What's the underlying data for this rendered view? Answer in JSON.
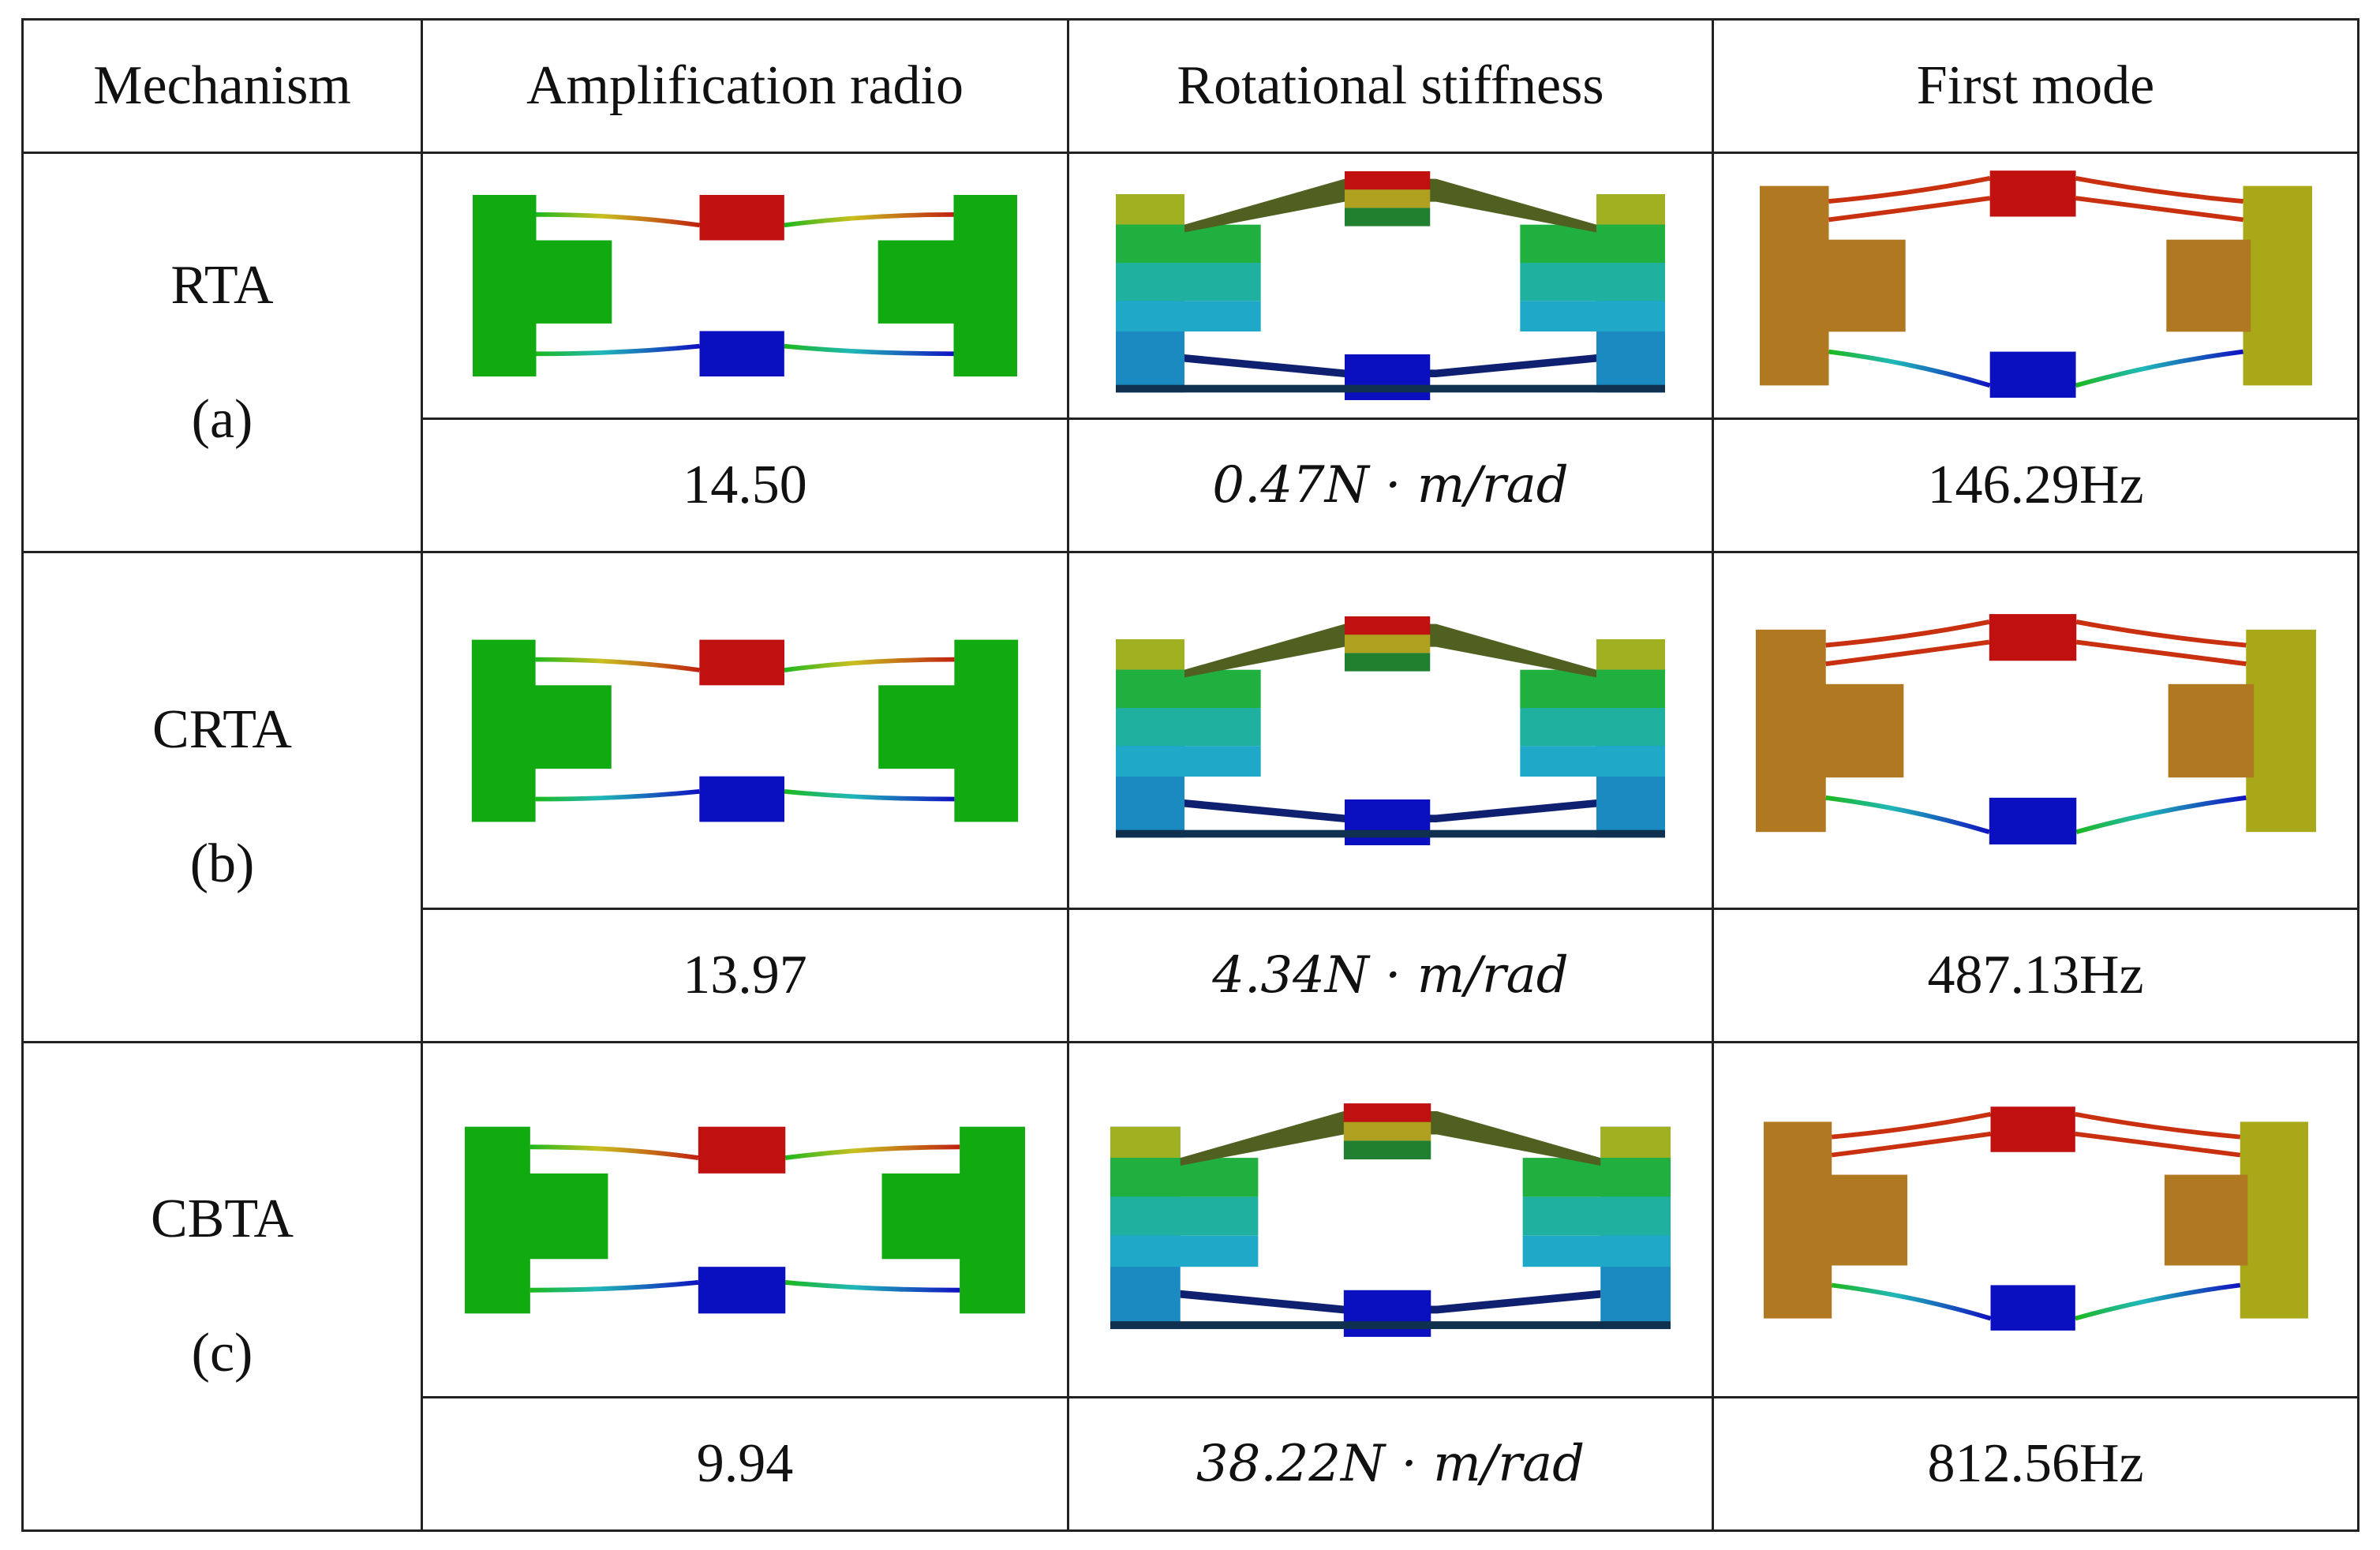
{
  "table": {
    "header": [
      "Mechanism",
      "Amplification radio",
      "Rotational stiffness",
      "First mode"
    ],
    "rows": [
      {
        "mechanism": "RTA",
        "label": "(a)",
        "amplification": "14.50",
        "stiffness": "0.47N · m/rad",
        "mode": "146.29Hz"
      },
      {
        "mechanism": "CRTA",
        "label": "(b)",
        "amplification": "13.97",
        "stiffness": "4.34N · m/rad",
        "mode": "487.13Hz"
      },
      {
        "mechanism": "CBTA",
        "label": "(c)",
        "amplification": "9.94",
        "stiffness": "38.22N · m/rad",
        "mode": "812.56Hz"
      }
    ]
  }
}
